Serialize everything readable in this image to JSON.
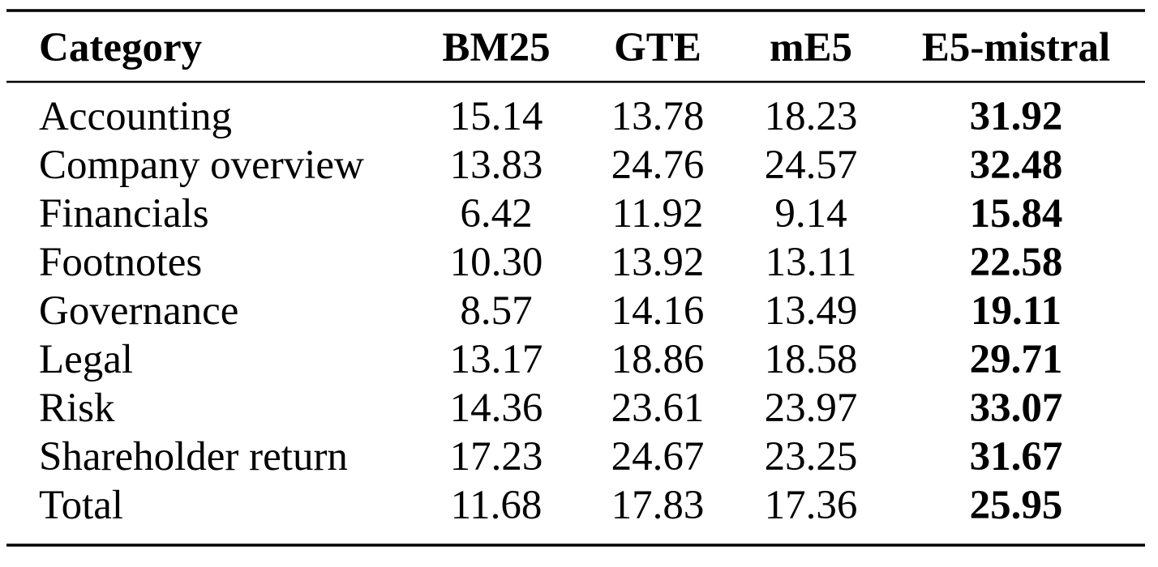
{
  "table": {
    "columns": [
      "Category",
      "BM25",
      "GTE",
      "mE5",
      "E5-mistral"
    ],
    "rows": [
      [
        "Accounting",
        "15.14",
        "13.78",
        "18.23",
        "31.92"
      ],
      [
        "Company overview",
        "13.83",
        "24.76",
        "24.57",
        "32.48"
      ],
      [
        "Financials",
        "6.42",
        "11.92",
        "9.14",
        "15.84"
      ],
      [
        "Footnotes",
        "10.30",
        "13.92",
        "13.11",
        "22.58"
      ],
      [
        "Governance",
        "8.57",
        "14.16",
        "13.49",
        "19.11"
      ],
      [
        "Legal",
        "13.17",
        "18.86",
        "18.58",
        "29.71"
      ],
      [
        "Risk",
        "14.36",
        "23.61",
        "23.97",
        "33.07"
      ],
      [
        "Shareholder return",
        "17.23",
        "24.67",
        "23.25",
        "31.67"
      ],
      [
        "Total",
        "11.68",
        "17.83",
        "17.36",
        "25.95"
      ]
    ]
  }
}
